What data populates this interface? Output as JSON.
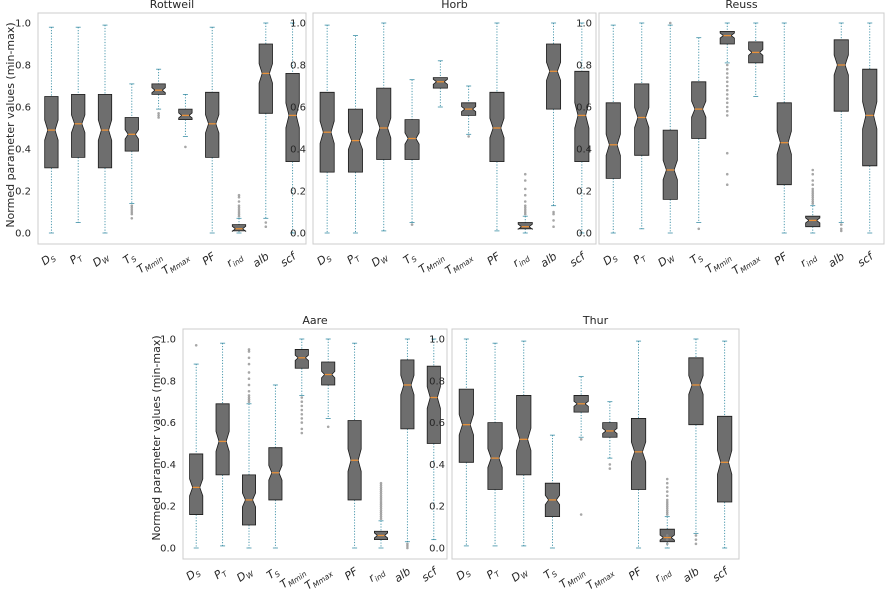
{
  "figure": {
    "ylabel": "Normed parameter values (min-max)",
    "yticks": [
      "0.0",
      "0.2",
      "0.4",
      "0.6",
      "0.8",
      "1.0"
    ],
    "categories": [
      {
        "main": "D",
        "sub": "S"
      },
      {
        "main": "P",
        "sub": "T"
      },
      {
        "main": "D",
        "sub": "W"
      },
      {
        "main": "T",
        "sub": "S"
      },
      {
        "main": "T",
        "sub": "Mmin"
      },
      {
        "main": "T",
        "sub": "Mmax"
      },
      {
        "main": "PF",
        "sub": ""
      },
      {
        "main": "r",
        "sub": "ind"
      },
      {
        "main": "alb",
        "sub": ""
      },
      {
        "main": "scf",
        "sub": ""
      }
    ]
  },
  "colors": {
    "box": "#6e6e6e",
    "box_edge": "#1a1a1a",
    "median": "#e8913a",
    "whisker": "#3b8fa6",
    "flier": "#8a8a8a",
    "frame": "#cccccc"
  },
  "chart_data": [
    {
      "type": "boxplot",
      "title": "Rottweil",
      "ylim": [
        0,
        1
      ],
      "grid": false,
      "boxes": [
        {
          "q1": 0.31,
          "median": 0.49,
          "q3": 0.65,
          "whislo": 0.0,
          "whishi": 0.98,
          "fliers": []
        },
        {
          "q1": 0.36,
          "median": 0.52,
          "q3": 0.66,
          "whislo": 0.05,
          "whishi": 0.98,
          "fliers": []
        },
        {
          "q1": 0.31,
          "median": 0.49,
          "q3": 0.66,
          "whislo": 0.0,
          "whishi": 0.99,
          "fliers": []
        },
        {
          "q1": 0.39,
          "median": 0.47,
          "q3": 0.55,
          "whislo": 0.14,
          "whishi": 0.71,
          "fliers": [
            0.07,
            0.09,
            0.1,
            0.11,
            0.12,
            0.13
          ]
        },
        {
          "q1": 0.66,
          "median": 0.68,
          "q3": 0.71,
          "whislo": 0.59,
          "whishi": 0.78,
          "fliers": [
            0.55,
            0.56,
            0.57
          ]
        },
        {
          "q1": 0.54,
          "median": 0.56,
          "q3": 0.59,
          "whislo": 0.46,
          "whishi": 0.66,
          "fliers": [
            0.41
          ]
        },
        {
          "q1": 0.36,
          "median": 0.52,
          "q3": 0.67,
          "whislo": 0.0,
          "whishi": 0.98,
          "fliers": []
        },
        {
          "q1": 0.01,
          "median": 0.02,
          "q3": 0.04,
          "whislo": 0.0,
          "whishi": 0.07,
          "fliers": [
            0.08,
            0.09,
            0.1,
            0.11,
            0.12,
            0.13,
            0.15,
            0.17,
            0.18
          ]
        },
        {
          "q1": 0.57,
          "median": 0.76,
          "q3": 0.9,
          "whislo": 0.07,
          "whishi": 1.0,
          "fliers": [
            0.03,
            0.05
          ]
        },
        {
          "q1": 0.34,
          "median": 0.56,
          "q3": 0.76,
          "whislo": 0.0,
          "whishi": 1.0,
          "fliers": []
        }
      ]
    },
    {
      "type": "boxplot",
      "title": "Horb",
      "ylim": [
        0,
        1
      ],
      "grid": false,
      "boxes": [
        {
          "q1": 0.29,
          "median": 0.48,
          "q3": 0.67,
          "whislo": 0.0,
          "whishi": 0.99,
          "fliers": []
        },
        {
          "q1": 0.29,
          "median": 0.44,
          "q3": 0.59,
          "whislo": 0.0,
          "whishi": 0.94,
          "fliers": []
        },
        {
          "q1": 0.35,
          "median": 0.5,
          "q3": 0.69,
          "whislo": 0.01,
          "whishi": 1.0,
          "fliers": []
        },
        {
          "q1": 0.35,
          "median": 0.45,
          "q3": 0.54,
          "whislo": 0.05,
          "whishi": 0.73,
          "fliers": [
            0.04
          ]
        },
        {
          "q1": 0.69,
          "median": 0.72,
          "q3": 0.74,
          "whislo": 0.6,
          "whishi": 0.82,
          "fliers": []
        },
        {
          "q1": 0.56,
          "median": 0.59,
          "q3": 0.62,
          "whislo": 0.47,
          "whishi": 0.7,
          "fliers": [
            0.46
          ]
        },
        {
          "q1": 0.34,
          "median": 0.5,
          "q3": 0.67,
          "whislo": 0.01,
          "whishi": 1.0,
          "fliers": []
        },
        {
          "q1": 0.02,
          "median": 0.03,
          "q3": 0.05,
          "whislo": 0.0,
          "whishi": 0.08,
          "fliers": [
            0.09,
            0.1,
            0.11,
            0.12,
            0.13,
            0.15,
            0.18,
            0.21,
            0.25,
            0.28
          ]
        },
        {
          "q1": 0.59,
          "median": 0.77,
          "q3": 0.9,
          "whislo": 0.13,
          "whishi": 1.0,
          "fliers": [
            0.03,
            0.06,
            0.09,
            0.1
          ]
        },
        {
          "q1": 0.34,
          "median": 0.56,
          "q3": 0.77,
          "whislo": 0.0,
          "whishi": 1.0,
          "fliers": []
        }
      ]
    },
    {
      "type": "boxplot",
      "title": "Reuss",
      "ylim": [
        0,
        1
      ],
      "grid": false,
      "boxes": [
        {
          "q1": 0.26,
          "median": 0.42,
          "q3": 0.62,
          "whislo": 0.0,
          "whishi": 0.99,
          "fliers": []
        },
        {
          "q1": 0.37,
          "median": 0.55,
          "q3": 0.71,
          "whislo": 0.02,
          "whishi": 1.0,
          "fliers": []
        },
        {
          "q1": 0.16,
          "median": 0.3,
          "q3": 0.49,
          "whislo": 0.0,
          "whishi": 0.99,
          "fliers": [
            1.0
          ]
        },
        {
          "q1": 0.45,
          "median": 0.59,
          "q3": 0.72,
          "whislo": 0.05,
          "whishi": 0.93,
          "fliers": [
            0.02
          ]
        },
        {
          "q1": 0.9,
          "median": 0.94,
          "q3": 0.96,
          "whislo": 0.81,
          "whishi": 1.0,
          "fliers": [
            0.23,
            0.28,
            0.38,
            0.56,
            0.58,
            0.6,
            0.62,
            0.64,
            0.66,
            0.68,
            0.7,
            0.72,
            0.74,
            0.76,
            0.78,
            0.8
          ]
        },
        {
          "q1": 0.81,
          "median": 0.86,
          "q3": 0.91,
          "whislo": 0.65,
          "whishi": 1.0,
          "fliers": []
        },
        {
          "q1": 0.23,
          "median": 0.43,
          "q3": 0.62,
          "whislo": 0.0,
          "whishi": 1.0,
          "fliers": []
        },
        {
          "q1": 0.03,
          "median": 0.06,
          "q3": 0.08,
          "whislo": 0.0,
          "whishi": 0.13,
          "fliers": [
            0.14,
            0.15,
            0.16,
            0.17,
            0.18,
            0.19,
            0.2,
            0.21,
            0.23,
            0.25,
            0.28,
            0.3
          ]
        },
        {
          "q1": 0.58,
          "median": 0.8,
          "q3": 0.92,
          "whislo": 0.05,
          "whishi": 1.0,
          "fliers": [
            0.01,
            0.02,
            0.04
          ]
        },
        {
          "q1": 0.32,
          "median": 0.56,
          "q3": 0.78,
          "whislo": 0.0,
          "whishi": 1.0,
          "fliers": []
        }
      ]
    },
    {
      "type": "boxplot",
      "title": "Aare",
      "ylim": [
        0,
        1
      ],
      "grid": false,
      "boxes": [
        {
          "q1": 0.16,
          "median": 0.29,
          "q3": 0.45,
          "whislo": 0.0,
          "whishi": 0.88,
          "fliers": [
            0.97
          ]
        },
        {
          "q1": 0.35,
          "median": 0.51,
          "q3": 0.69,
          "whislo": 0.01,
          "whishi": 0.98,
          "fliers": []
        },
        {
          "q1": 0.11,
          "median": 0.23,
          "q3": 0.35,
          "whislo": 0.0,
          "whishi": 0.69,
          "fliers": [
            0.7,
            0.71,
            0.72,
            0.73,
            0.75,
            0.78,
            0.81,
            0.84,
            0.88,
            0.91,
            0.94,
            0.95
          ]
        },
        {
          "q1": 0.23,
          "median": 0.36,
          "q3": 0.48,
          "whislo": 0.0,
          "whishi": 0.78,
          "fliers": []
        },
        {
          "q1": 0.86,
          "median": 0.91,
          "q3": 0.95,
          "whislo": 0.73,
          "whishi": 1.0,
          "fliers": [
            0.55,
            0.57,
            0.6,
            0.62,
            0.64,
            0.66,
            0.68,
            0.7,
            0.72
          ]
        },
        {
          "q1": 0.78,
          "median": 0.83,
          "q3": 0.89,
          "whislo": 0.62,
          "whishi": 1.0,
          "fliers": [
            0.58
          ]
        },
        {
          "q1": 0.23,
          "median": 0.42,
          "q3": 0.61,
          "whislo": 0.0,
          "whishi": 0.98,
          "fliers": []
        },
        {
          "q1": 0.04,
          "median": 0.06,
          "q3": 0.08,
          "whislo": 0.0,
          "whishi": 0.13,
          "fliers": [
            0.14,
            0.15,
            0.16,
            0.17,
            0.18,
            0.19,
            0.2,
            0.21,
            0.22,
            0.23,
            0.24,
            0.25,
            0.26,
            0.27,
            0.28,
            0.29,
            0.3,
            0.31
          ]
        },
        {
          "q1": 0.57,
          "median": 0.78,
          "q3": 0.9,
          "whislo": 0.03,
          "whishi": 1.0,
          "fliers": [
            0.0,
            0.01,
            0.02
          ]
        },
        {
          "q1": 0.5,
          "median": 0.72,
          "q3": 0.87,
          "whislo": 0.04,
          "whishi": 1.0,
          "fliers": []
        }
      ]
    },
    {
      "type": "boxplot",
      "title": "Thur",
      "ylim": [
        0,
        1
      ],
      "grid": false,
      "boxes": [
        {
          "q1": 0.41,
          "median": 0.59,
          "q3": 0.76,
          "whislo": 0.01,
          "whishi": 1.0,
          "fliers": []
        },
        {
          "q1": 0.28,
          "median": 0.43,
          "q3": 0.6,
          "whislo": 0.01,
          "whishi": 0.98,
          "fliers": []
        },
        {
          "q1": 0.35,
          "median": 0.52,
          "q3": 0.73,
          "whislo": 0.01,
          "whishi": 0.99,
          "fliers": []
        },
        {
          "q1": 0.15,
          "median": 0.23,
          "q3": 0.31,
          "whislo": 0.0,
          "whishi": 0.54,
          "fliers": []
        },
        {
          "q1": 0.65,
          "median": 0.69,
          "q3": 0.73,
          "whislo": 0.53,
          "whishi": 0.82,
          "fliers": [
            0.16,
            0.52
          ]
        },
        {
          "q1": 0.53,
          "median": 0.56,
          "q3": 0.6,
          "whislo": 0.43,
          "whishi": 0.7,
          "fliers": [
            0.38,
            0.4
          ]
        },
        {
          "q1": 0.28,
          "median": 0.46,
          "q3": 0.62,
          "whislo": 0.0,
          "whishi": 0.99,
          "fliers": []
        },
        {
          "q1": 0.03,
          "median": 0.05,
          "q3": 0.09,
          "whislo": 0.0,
          "whishi": 0.15,
          "fliers": [
            0.02,
            0.04,
            0.06,
            0.16,
            0.17,
            0.18,
            0.19,
            0.2,
            0.21,
            0.22,
            0.23,
            0.25,
            0.27,
            0.29,
            0.31,
            0.33
          ]
        },
        {
          "q1": 0.59,
          "median": 0.78,
          "q3": 0.91,
          "whislo": 0.07,
          "whishi": 1.0,
          "fliers": [
            0.02,
            0.04,
            0.06
          ]
        },
        {
          "q1": 0.22,
          "median": 0.41,
          "q3": 0.63,
          "whislo": 0.0,
          "whishi": 0.99,
          "fliers": []
        }
      ]
    }
  ]
}
